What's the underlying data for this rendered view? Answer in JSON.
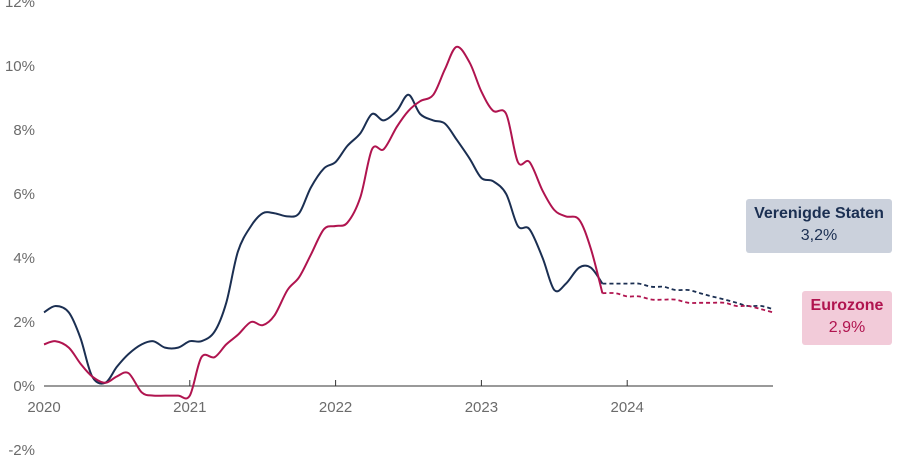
{
  "chart_data": {
    "type": "line",
    "title": "",
    "xlabel": "",
    "ylabel": "",
    "xlim": [
      2020.0,
      2025.0
    ],
    "ylim": [
      -2,
      12
    ],
    "x_ticks": [
      2020,
      2021,
      2022,
      2023,
      2024
    ],
    "x_tick_labels": [
      "2020",
      "2021",
      "2022",
      "2023",
      "2024"
    ],
    "y_ticks": [
      -2,
      0,
      2,
      4,
      6,
      8,
      10,
      12
    ],
    "y_tick_labels": [
      "-2%",
      "0%",
      "2%",
      "4%",
      "6%",
      "8%",
      "10%",
      "12%"
    ],
    "grid": {
      "horizontal": false,
      "vertical": false
    },
    "forecast_start": 2023.83,
    "series": [
      {
        "name": "Verenigde Staten",
        "color": "#1b2f52",
        "label_bg": "#cbd1dc",
        "value_label": "3,2%",
        "x": [
          2020.0,
          2020.08,
          2020.17,
          2020.25,
          2020.33,
          2020.42,
          2020.5,
          2020.58,
          2020.67,
          2020.75,
          2020.83,
          2020.92,
          2021.0,
          2021.08,
          2021.17,
          2021.25,
          2021.33,
          2021.42,
          2021.5,
          2021.58,
          2021.67,
          2021.75,
          2021.83,
          2021.92,
          2022.0,
          2022.08,
          2022.17,
          2022.25,
          2022.33,
          2022.42,
          2022.5,
          2022.58,
          2022.67,
          2022.75,
          2022.83,
          2022.92,
          2023.0,
          2023.08,
          2023.17,
          2023.25,
          2023.33,
          2023.42,
          2023.5,
          2023.58,
          2023.67,
          2023.75,
          2023.83,
          2023.92,
          2024.0,
          2024.08,
          2024.17,
          2024.25,
          2024.33,
          2024.42,
          2024.5,
          2024.58,
          2024.67,
          2024.75,
          2024.83,
          2024.92,
          2025.0
        ],
        "y": [
          2.3,
          2.5,
          2.3,
          1.5,
          0.3,
          0.1,
          0.6,
          1.0,
          1.3,
          1.4,
          1.2,
          1.2,
          1.4,
          1.4,
          1.7,
          2.6,
          4.2,
          5.0,
          5.4,
          5.4,
          5.3,
          5.4,
          6.2,
          6.8,
          7.0,
          7.5,
          7.9,
          8.5,
          8.3,
          8.6,
          9.1,
          8.5,
          8.3,
          8.2,
          7.7,
          7.1,
          6.5,
          6.4,
          6.0,
          5.0,
          4.9,
          4.0,
          3.0,
          3.2,
          3.7,
          3.7,
          3.2,
          3.2,
          3.2,
          3.2,
          3.1,
          3.1,
          3.0,
          3.0,
          2.9,
          2.8,
          2.7,
          2.6,
          2.5,
          2.5,
          2.4
        ]
      },
      {
        "name": "Eurozone",
        "color": "#b0144f",
        "label_bg": "#f2cbd9",
        "value_label": "2,9%",
        "x": [
          2020.0,
          2020.08,
          2020.17,
          2020.25,
          2020.33,
          2020.42,
          2020.5,
          2020.58,
          2020.67,
          2020.75,
          2020.83,
          2020.92,
          2021.0,
          2021.08,
          2021.17,
          2021.25,
          2021.33,
          2021.42,
          2021.5,
          2021.58,
          2021.67,
          2021.75,
          2021.83,
          2021.92,
          2022.0,
          2022.08,
          2022.17,
          2022.25,
          2022.33,
          2022.42,
          2022.5,
          2022.58,
          2022.67,
          2022.75,
          2022.83,
          2022.92,
          2023.0,
          2023.08,
          2023.17,
          2023.25,
          2023.33,
          2023.42,
          2023.5,
          2023.58,
          2023.67,
          2023.75,
          2023.83,
          2023.92,
          2024.0,
          2024.08,
          2024.17,
          2024.25,
          2024.33,
          2024.42,
          2024.5,
          2024.58,
          2024.67,
          2024.75,
          2024.83,
          2024.92,
          2025.0
        ],
        "y": [
          1.3,
          1.4,
          1.2,
          0.7,
          0.3,
          0.1,
          0.3,
          0.4,
          -0.2,
          -0.3,
          -0.3,
          -0.3,
          -0.3,
          0.9,
          0.9,
          1.3,
          1.6,
          2.0,
          1.9,
          2.2,
          3.0,
          3.4,
          4.1,
          4.9,
          5.0,
          5.1,
          5.9,
          7.4,
          7.4,
          8.1,
          8.6,
          8.9,
          9.1,
          9.9,
          10.6,
          10.1,
          9.2,
          8.6,
          8.5,
          7.0,
          7.0,
          6.1,
          5.5,
          5.3,
          5.2,
          4.3,
          2.9,
          2.9,
          2.8,
          2.8,
          2.7,
          2.7,
          2.7,
          2.6,
          2.6,
          2.6,
          2.6,
          2.5,
          2.5,
          2.4,
          2.3
        ]
      }
    ]
  }
}
